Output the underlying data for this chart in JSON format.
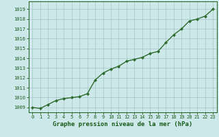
{
  "x": [
    0,
    1,
    2,
    3,
    4,
    5,
    6,
    7,
    8,
    9,
    10,
    11,
    12,
    13,
    14,
    15,
    16,
    17,
    18,
    19,
    20,
    21,
    22,
    23
  ],
  "y": [
    1009.0,
    1008.9,
    1009.3,
    1009.7,
    1009.9,
    1010.0,
    1010.1,
    1010.4,
    1011.8,
    1012.5,
    1012.9,
    1013.2,
    1013.7,
    1013.9,
    1014.1,
    1014.5,
    1014.7,
    1015.6,
    1016.4,
    1017.0,
    1017.8,
    1018.0,
    1018.3,
    1019.0
  ],
  "line_color": "#2d6a2d",
  "marker": "D",
  "marker_size": 2.2,
  "line_width": 1.0,
  "bg_color": "#cce8e8",
  "grid_color": "#aacccc",
  "title": "Graphe pression niveau de la mer (hPa)",
  "title_color": "#1a5c1a",
  "title_fontsize": 6.5,
  "ylim": [
    1008.5,
    1019.8
  ],
  "xlim": [
    -0.5,
    23.5
  ],
  "yticks": [
    1009,
    1010,
    1011,
    1012,
    1013,
    1014,
    1015,
    1016,
    1017,
    1018,
    1019
  ],
  "xticks": [
    0,
    1,
    2,
    3,
    4,
    5,
    6,
    7,
    8,
    9,
    10,
    11,
    12,
    13,
    14,
    15,
    16,
    17,
    18,
    19,
    20,
    21,
    22,
    23
  ],
  "tick_color": "#1a5c1a",
  "ytick_fontsize": 5.0,
  "xtick_fontsize": 5.0
}
